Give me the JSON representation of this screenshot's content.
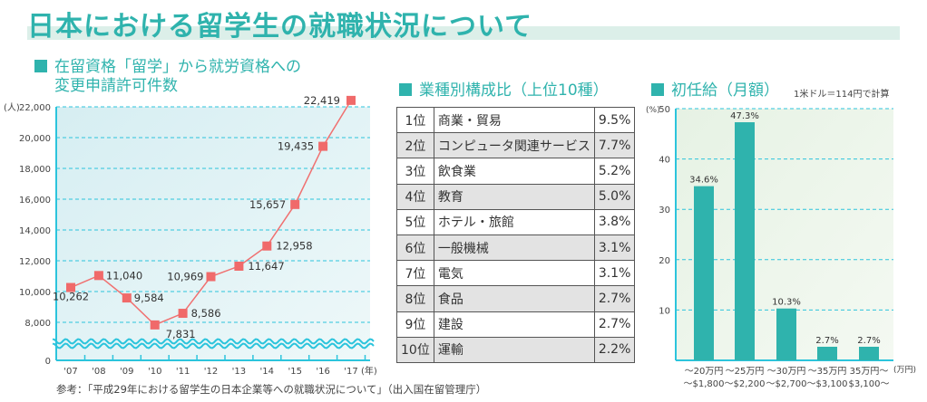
{
  "title": "日本における留学生の就職状況について",
  "note": "参考：「平成29年における留学生の日本企業等への就職状況について」（出入国在留管理庁）",
  "colors": {
    "accent": "#2fb3ad",
    "line": "#f07070",
    "marker": "#f06a6a",
    "grid": "#2cc4dc"
  },
  "chart_data": [
    {
      "type": "line",
      "title_line1": "在留資格「留学」から就労資格への",
      "title_line2": "変更申請許可件数",
      "ylabel": "(人)",
      "xunit": "(年)",
      "ylim": [
        0,
        22000
      ],
      "axis_break": true,
      "yticks": [
        "0",
        "8,000",
        "10,000",
        "12,000",
        "14,000",
        "16,000",
        "18,000",
        "20,000",
        "22,000"
      ],
      "categories": [
        "'07",
        "'08",
        "'09",
        "'10",
        "'11",
        "'12",
        "'13",
        "'14",
        "'15",
        "'16",
        "'17"
      ],
      "values": [
        10262,
        11040,
        9584,
        7831,
        8586,
        10969,
        11647,
        12958,
        15657,
        19435,
        22419
      ],
      "labels": [
        "10,262",
        "11,040",
        "9,584",
        "7,831",
        "8,586",
        "10,969",
        "11,647",
        "12,958",
        "15,657",
        "19,435",
        "22,419"
      ],
      "grid": true
    },
    {
      "type": "table",
      "title": "業種別構成比（上位10種）",
      "rows": [
        [
          "1位",
          "商業・貿易",
          "9.5%"
        ],
        [
          "2位",
          "コンピュータ関連サービス",
          "7.7%"
        ],
        [
          "3位",
          "飲食業",
          "5.2%"
        ],
        [
          "4位",
          "教育",
          "5.0%"
        ],
        [
          "5位",
          "ホテル・旅館",
          "3.8%"
        ],
        [
          "6位",
          "一般機械",
          "3.1%"
        ],
        [
          "7位",
          "電気",
          "3.1%"
        ],
        [
          "8位",
          "食品",
          "2.7%"
        ],
        [
          "9位",
          "建設",
          "2.7%"
        ],
        [
          "10位",
          "運輸",
          "2.2%"
        ]
      ]
    },
    {
      "type": "bar",
      "title": "初任給（月額）",
      "note": "1米ドル＝114円で計算",
      "ylabel": "(%)",
      "xunit": "(万円)",
      "ylim": [
        0,
        50
      ],
      "yticks": [
        "10",
        "20",
        "30",
        "40",
        "50"
      ],
      "categories": [
        [
          "～20万円",
          "～$1,800"
        ],
        [
          "～25万円",
          "～$2,200"
        ],
        [
          "～30万円",
          "～$2,700"
        ],
        [
          "～35万円",
          "～$3,100"
        ],
        [
          "35万円～",
          "$3,100～"
        ]
      ],
      "values": [
        34.6,
        47.3,
        10.3,
        2.7,
        2.7
      ],
      "labels": [
        "34.6%",
        "47.3%",
        "10.3%",
        "2.7%",
        "2.7%"
      ],
      "grid": true
    }
  ]
}
